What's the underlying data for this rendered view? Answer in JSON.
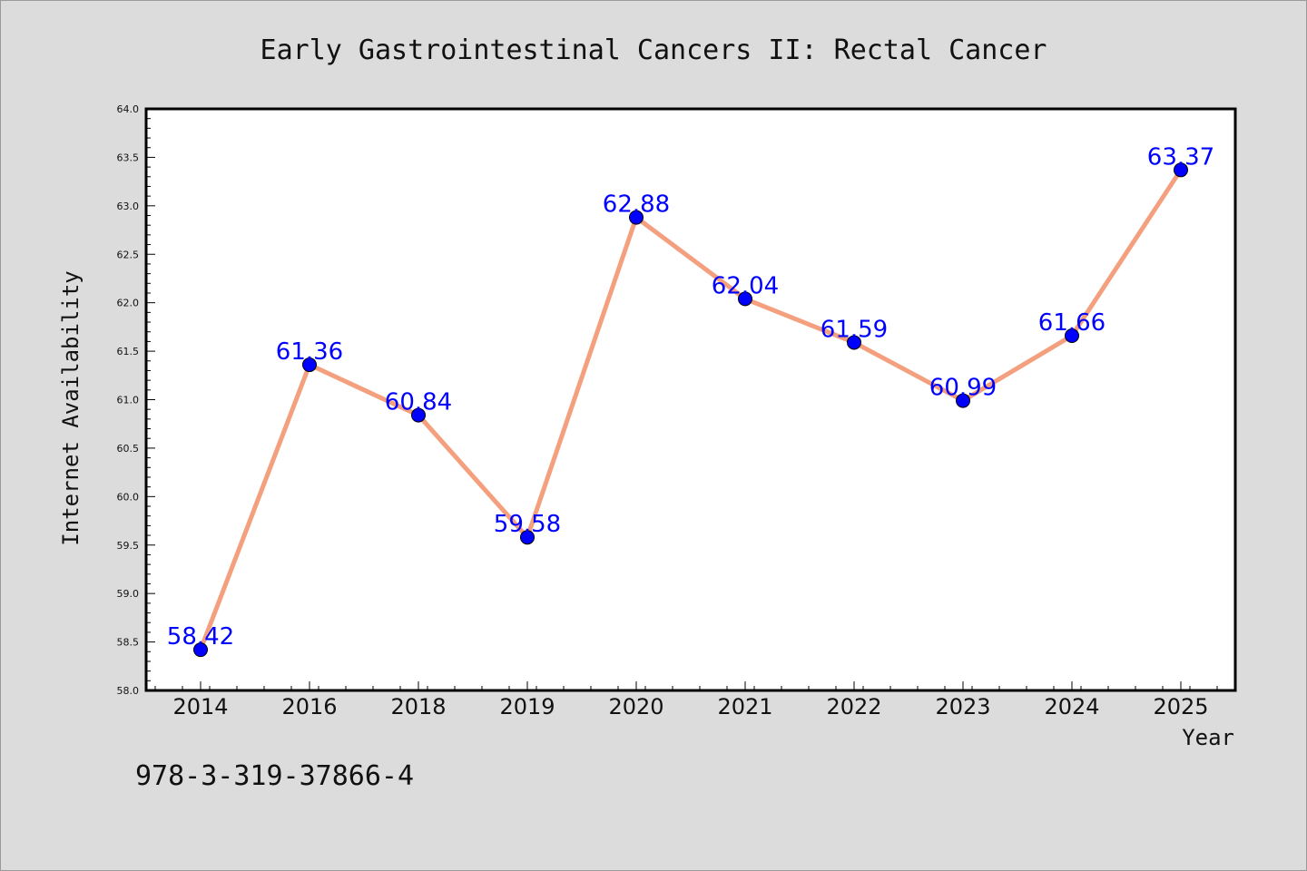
{
  "chart_data": {
    "type": "line",
    "title": "Early Gastrointestinal Cancers II: Rectal Cancer",
    "xlabel": "Year",
    "ylabel": "Internet Availability",
    "categories": [
      "2014",
      "2016",
      "2018",
      "2019",
      "2020",
      "2021",
      "2022",
      "2023",
      "2024",
      "2025"
    ],
    "series": [
      {
        "values": [
          58.42,
          61.36,
          60.84,
          59.58,
          62.88,
          62.04,
          61.59,
          60.99,
          61.66,
          63.37
        ],
        "labels": [
          "58.42",
          "61.36",
          "60.84",
          "59.58",
          "62.88",
          "62.04",
          "61.59",
          "60.99",
          "61.66",
          "63.37"
        ]
      }
    ],
    "ylim": [
      58.0,
      64.0
    ],
    "yticks": [
      "58.0",
      "58.5",
      "59.0",
      "59.5",
      "60.0",
      "60.5",
      "61.0",
      "61.5",
      "62.0",
      "62.5",
      "63.0",
      "63.5",
      "64.0"
    ],
    "grid": false,
    "line_color": "#f4a07e",
    "marker_color": "#0000ff",
    "label_color": "#0000ff",
    "background_color": "#dcdcdc",
    "plot_background": "#ffffff"
  },
  "footer": {
    "isbn": "978-3-319-37866-4"
  }
}
